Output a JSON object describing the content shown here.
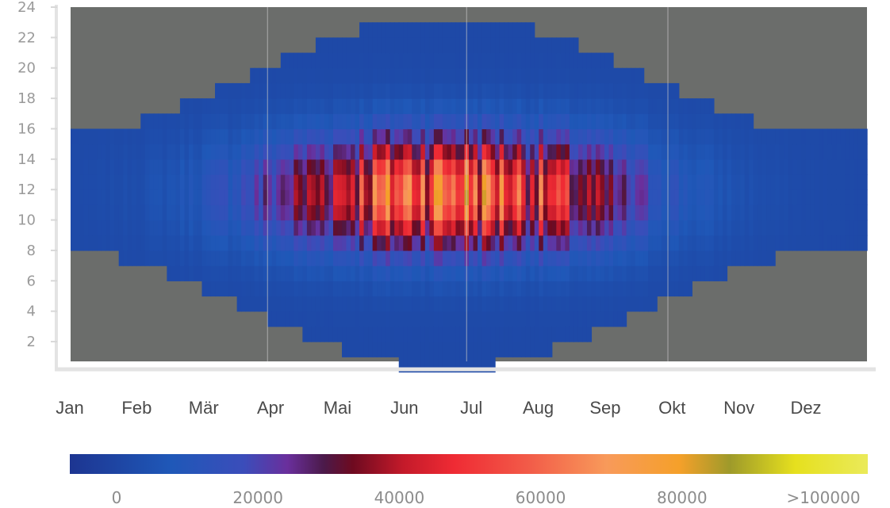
{
  "chart_data": {
    "type": "heatmap",
    "title": "",
    "xlabel": "",
    "ylabel": "",
    "x_categories": [
      "Jan",
      "Feb",
      "Mär",
      "Apr",
      "Mai",
      "Jun",
      "Jul",
      "Aug",
      "Sep",
      "Okt",
      "Nov",
      "Dez"
    ],
    "x_category_colors": [
      "#4a4a4a",
      "#4a4a4a",
      "#4a4a4a",
      "#4a4a4a",
      "#4a4a4a",
      "#4a4a4a",
      "#4a4a4a",
      "#4a4a4a",
      "#9a9a9a",
      "#4a4a4a",
      "#4a4a4a",
      "#9a9a9a"
    ],
    "y_ticks": [
      2,
      4,
      6,
      8,
      10,
      12,
      14,
      16,
      18,
      20,
      22,
      24
    ],
    "ylim": [
      0.7,
      24
    ],
    "day_of_year_range": [
      1,
      365
    ],
    "background_color": "#6b6d6b",
    "vertical_gridline_days": [
      91,
      182,
      274
    ],
    "daylight": {
      "solar_noon_hour": 11.8,
      "half_length_hours_winter": 3.7,
      "half_length_hours_summer": 11.6,
      "peak_day": 172
    },
    "intensity_model": {
      "peak_value": 75000,
      "peak_day": 172,
      "seasonal_sigma_days": 55,
      "hour_sigma_hours": 2.6
    },
    "colorbar": {
      "ticks": [
        "0",
        "20000",
        "40000",
        "60000",
        "80000",
        ">100000"
      ],
      "range": [
        -8000,
        102000
      ],
      "stops": [
        {
          "value": -8000,
          "color": "#1d3591"
        },
        {
          "value": 6000,
          "color": "#1f58b8"
        },
        {
          "value": 16000,
          "color": "#3b4dba"
        },
        {
          "value": 22000,
          "color": "#6a2f9c"
        },
        {
          "value": 27000,
          "color": "#4b1a4a"
        },
        {
          "value": 31000,
          "color": "#6e0a20"
        },
        {
          "value": 38000,
          "color": "#c41a2a"
        },
        {
          "value": 45000,
          "color": "#ef2b34"
        },
        {
          "value": 55000,
          "color": "#f25a48"
        },
        {
          "value": 66000,
          "color": "#f89a5a"
        },
        {
          "value": 76000,
          "color": "#f5a02a"
        },
        {
          "value": 83000,
          "color": "#9e9a2a"
        },
        {
          "value": 92000,
          "color": "#e6e01e"
        },
        {
          "value": 102000,
          "color": "#eaea5a"
        }
      ]
    }
  }
}
